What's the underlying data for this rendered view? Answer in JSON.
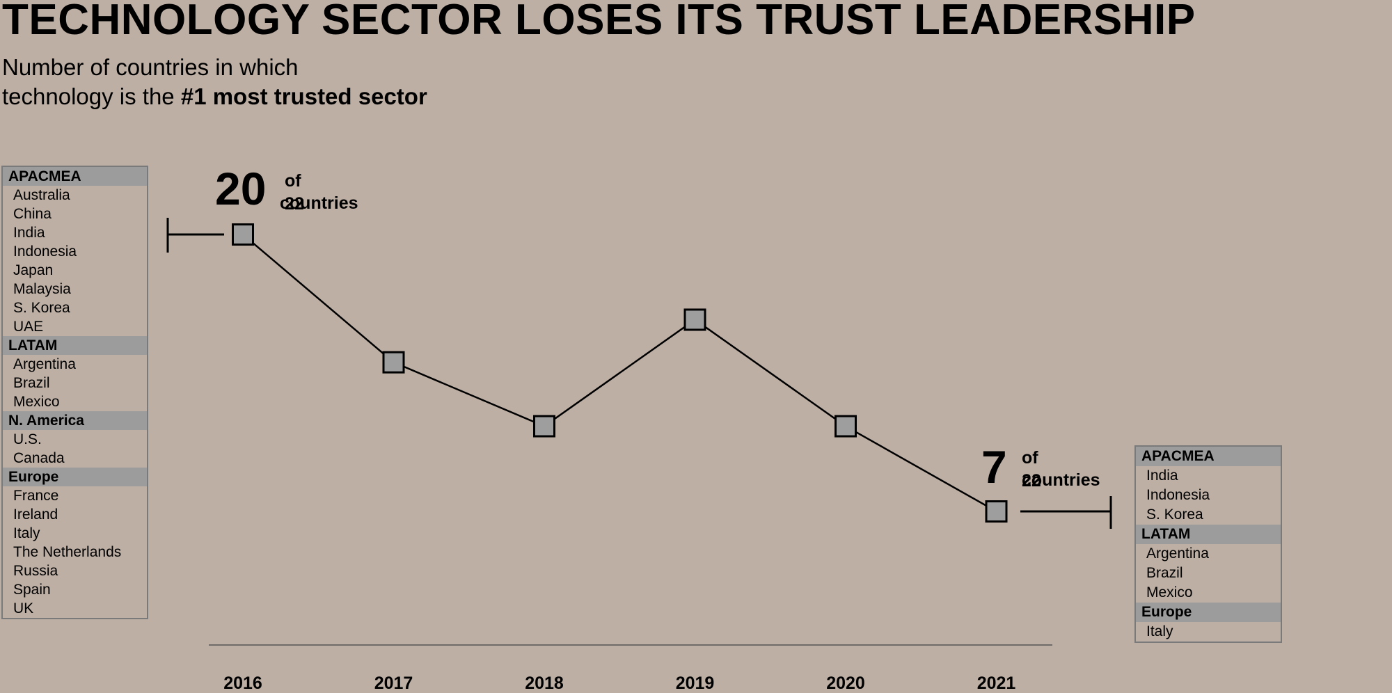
{
  "header": {
    "title": "TECHNOLOGY SECTOR LOSES ITS TRUST LEADERSHIP",
    "subtitle_line1": "Number of countries in which",
    "subtitle_line2_prefix": "technology is the ",
    "subtitle_line2_bold": "#1 most trusted sector"
  },
  "chart_data": {
    "type": "line",
    "title": "TECHNOLOGY SECTOR LOSES ITS TRUST LEADERSHIP",
    "x": [
      "2016",
      "2017",
      "2018",
      "2019",
      "2020",
      "2021"
    ],
    "series": [
      {
        "values": [
          20,
          14,
          11,
          16,
          11,
          7
        ]
      }
    ],
    "ylim": [
      0,
      22
    ],
    "grid": false,
    "line_color": "#000000",
    "marker_fill": "#9e9e9e",
    "axis_color": "#555555"
  },
  "callouts": {
    "start": {
      "value": "20",
      "suffix_line1": "of 22",
      "suffix_line2": "countries"
    },
    "end": {
      "value": "7",
      "suffix_line1": "of 22",
      "suffix_line2": "countries"
    }
  },
  "country_lists": {
    "2016": [
      {
        "region": "APACMEA",
        "countries": [
          "Australia",
          "China",
          "India",
          "Indonesia",
          "Japan",
          "Malaysia",
          "S. Korea",
          "UAE"
        ]
      },
      {
        "region": "LATAM",
        "countries": [
          "Argentina",
          "Brazil",
          "Mexico"
        ]
      },
      {
        "region": "N. America",
        "countries": [
          "U.S.",
          "Canada"
        ]
      },
      {
        "region": "Europe",
        "countries": [
          "France",
          "Ireland",
          "Italy",
          "The Netherlands",
          "Russia",
          "Spain",
          "UK"
        ]
      }
    ],
    "2021": [
      {
        "region": "APACMEA",
        "countries": [
          "India",
          "Indonesia",
          "S. Korea"
        ]
      },
      {
        "region": "LATAM",
        "countries": [
          "Argentina",
          "Brazil",
          "Mexico"
        ]
      },
      {
        "region": "Europe",
        "countries": [
          "Italy"
        ]
      }
    ]
  },
  "colors": {
    "background": "#bdafa4",
    "group_header": "#9c9c9c",
    "box_border": "#7a7a7a"
  }
}
